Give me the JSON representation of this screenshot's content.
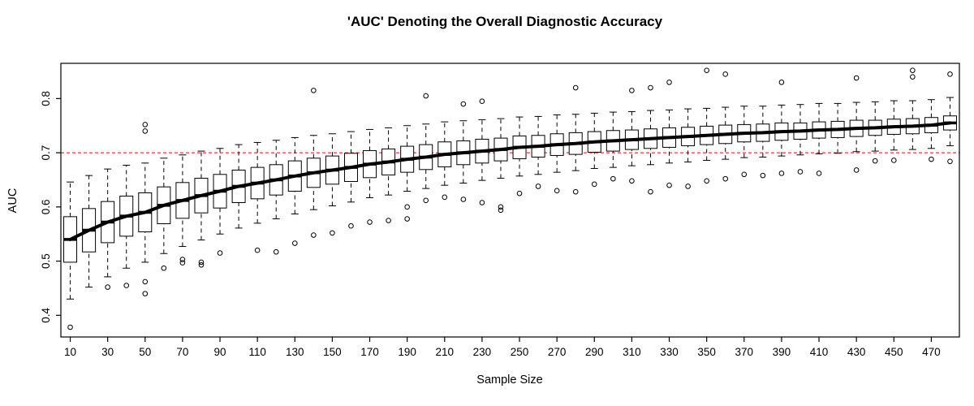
{
  "page": {
    "background": "#ffffff"
  },
  "chart_data": {
    "type": "boxplot",
    "title": "'AUC' Denoting the Overall Diagnostic Accuracy",
    "xlabel": "Sample Size",
    "ylabel": "AUC",
    "x_tick_labels": [
      "10",
      "30",
      "50",
      "70",
      "90",
      "110",
      "130",
      "150",
      "170",
      "190",
      "210",
      "230",
      "250",
      "270",
      "290",
      "310",
      "330",
      "350",
      "370",
      "390",
      "410",
      "430",
      "450",
      "470"
    ],
    "x_tick_values": [
      10,
      30,
      50,
      70,
      90,
      110,
      130,
      150,
      170,
      190,
      210,
      230,
      250,
      270,
      290,
      310,
      330,
      350,
      370,
      390,
      410,
      430,
      450,
      470
    ],
    "y_ticks": [
      "0.4",
      "0.5",
      "0.6",
      "0.7",
      "0.8"
    ],
    "y_tick_values": [
      0.4,
      0.5,
      0.6,
      0.7,
      0.8
    ],
    "ylim": [
      0.36,
      0.865
    ],
    "grid": false,
    "reference_line": {
      "y": 0.7,
      "color": "#ff0000",
      "style": "dashed"
    },
    "trend_line": {
      "through": "medians",
      "color": "#000000",
      "width": 4
    },
    "boxes": {
      "x": [
        10,
        20,
        30,
        40,
        50,
        60,
        70,
        80,
        90,
        100,
        110,
        120,
        130,
        140,
        150,
        160,
        170,
        180,
        190,
        200,
        210,
        220,
        230,
        240,
        250,
        260,
        270,
        280,
        290,
        300,
        310,
        320,
        330,
        340,
        350,
        360,
        370,
        380,
        390,
        400,
        410,
        420,
        430,
        440,
        450,
        460,
        470,
        480
      ],
      "median": [
        0.54,
        0.557,
        0.572,
        0.583,
        0.59,
        0.603,
        0.612,
        0.621,
        0.629,
        0.638,
        0.644,
        0.65,
        0.657,
        0.663,
        0.668,
        0.673,
        0.679,
        0.683,
        0.688,
        0.692,
        0.697,
        0.7,
        0.703,
        0.706,
        0.71,
        0.712,
        0.715,
        0.717,
        0.72,
        0.722,
        0.724,
        0.726,
        0.728,
        0.73,
        0.732,
        0.734,
        0.736,
        0.737,
        0.739,
        0.74,
        0.742,
        0.743,
        0.745,
        0.746,
        0.748,
        0.749,
        0.751,
        0.755
      ],
      "q1": [
        0.498,
        0.517,
        0.534,
        0.546,
        0.554,
        0.569,
        0.579,
        0.589,
        0.598,
        0.608,
        0.615,
        0.622,
        0.629,
        0.636,
        0.642,
        0.647,
        0.654,
        0.659,
        0.664,
        0.669,
        0.674,
        0.678,
        0.681,
        0.685,
        0.689,
        0.692,
        0.695,
        0.697,
        0.701,
        0.703,
        0.706,
        0.708,
        0.71,
        0.713,
        0.715,
        0.717,
        0.72,
        0.721,
        0.723,
        0.725,
        0.727,
        0.728,
        0.73,
        0.732,
        0.734,
        0.735,
        0.737,
        0.742
      ],
      "q3": [
        0.582,
        0.597,
        0.61,
        0.62,
        0.626,
        0.637,
        0.645,
        0.653,
        0.66,
        0.668,
        0.673,
        0.678,
        0.685,
        0.69,
        0.694,
        0.699,
        0.704,
        0.707,
        0.712,
        0.715,
        0.72,
        0.722,
        0.725,
        0.727,
        0.731,
        0.732,
        0.735,
        0.737,
        0.739,
        0.741,
        0.742,
        0.744,
        0.746,
        0.747,
        0.749,
        0.751,
        0.752,
        0.753,
        0.755,
        0.755,
        0.757,
        0.758,
        0.76,
        0.76,
        0.762,
        0.763,
        0.765,
        0.768
      ],
      "whisker_low": [
        0.43,
        0.452,
        0.471,
        0.487,
        0.498,
        0.514,
        0.527,
        0.539,
        0.55,
        0.561,
        0.57,
        0.578,
        0.587,
        0.595,
        0.602,
        0.609,
        0.617,
        0.622,
        0.629,
        0.634,
        0.64,
        0.644,
        0.649,
        0.653,
        0.657,
        0.66,
        0.664,
        0.667,
        0.671,
        0.673,
        0.676,
        0.678,
        0.681,
        0.683,
        0.686,
        0.688,
        0.691,
        0.692,
        0.694,
        0.696,
        0.698,
        0.699,
        0.702,
        0.703,
        0.705,
        0.706,
        0.708,
        0.713
      ],
      "whisker_high": [
        0.646,
        0.658,
        0.67,
        0.677,
        0.681,
        0.69,
        0.696,
        0.703,
        0.708,
        0.715,
        0.719,
        0.723,
        0.728,
        0.732,
        0.735,
        0.739,
        0.743,
        0.746,
        0.75,
        0.753,
        0.757,
        0.759,
        0.761,
        0.763,
        0.766,
        0.767,
        0.77,
        0.771,
        0.773,
        0.775,
        0.776,
        0.778,
        0.779,
        0.781,
        0.782,
        0.784,
        0.786,
        0.786,
        0.788,
        0.789,
        0.791,
        0.791,
        0.793,
        0.794,
        0.796,
        0.796,
        0.798,
        0.802
      ]
    },
    "outliers": [
      [
        10,
        0.378
      ],
      [
        30,
        0.452
      ],
      [
        40,
        0.455
      ],
      [
        50,
        0.752
      ],
      [
        50,
        0.74
      ],
      [
        50,
        0.462
      ],
      [
        50,
        0.44
      ],
      [
        60,
        0.487
      ],
      [
        70,
        0.503
      ],
      [
        70,
        0.497
      ],
      [
        80,
        0.498
      ],
      [
        80,
        0.493
      ],
      [
        90,
        0.515
      ],
      [
        110,
        0.52
      ],
      [
        120,
        0.517
      ],
      [
        130,
        0.533
      ],
      [
        140,
        0.815
      ],
      [
        140,
        0.548
      ],
      [
        150,
        0.552
      ],
      [
        160,
        0.565
      ],
      [
        170,
        0.572
      ],
      [
        180,
        0.575
      ],
      [
        190,
        0.578
      ],
      [
        190,
        0.6
      ],
      [
        200,
        0.805
      ],
      [
        200,
        0.612
      ],
      [
        210,
        0.618
      ],
      [
        220,
        0.79
      ],
      [
        220,
        0.614
      ],
      [
        230,
        0.795
      ],
      [
        230,
        0.608
      ],
      [
        240,
        0.6
      ],
      [
        240,
        0.594
      ],
      [
        250,
        0.625
      ],
      [
        260,
        0.638
      ],
      [
        270,
        0.63
      ],
      [
        280,
        0.82
      ],
      [
        280,
        0.628
      ],
      [
        290,
        0.642
      ],
      [
        300,
        0.652
      ],
      [
        310,
        0.815
      ],
      [
        310,
        0.648
      ],
      [
        320,
        0.82
      ],
      [
        320,
        0.628
      ],
      [
        330,
        0.83
      ],
      [
        330,
        0.64
      ],
      [
        340,
        0.638
      ],
      [
        350,
        0.852
      ],
      [
        350,
        0.648
      ],
      [
        360,
        0.845
      ],
      [
        360,
        0.652
      ],
      [
        370,
        0.66
      ],
      [
        380,
        0.658
      ],
      [
        390,
        0.83
      ],
      [
        390,
        0.662
      ],
      [
        400,
        0.665
      ],
      [
        410,
        0.662
      ],
      [
        430,
        0.838
      ],
      [
        430,
        0.668
      ],
      [
        440,
        0.685
      ],
      [
        450,
        0.686
      ],
      [
        460,
        0.84
      ],
      [
        460,
        0.852
      ],
      [
        470,
        0.688
      ],
      [
        480,
        0.845
      ],
      [
        480,
        0.684
      ]
    ]
  }
}
